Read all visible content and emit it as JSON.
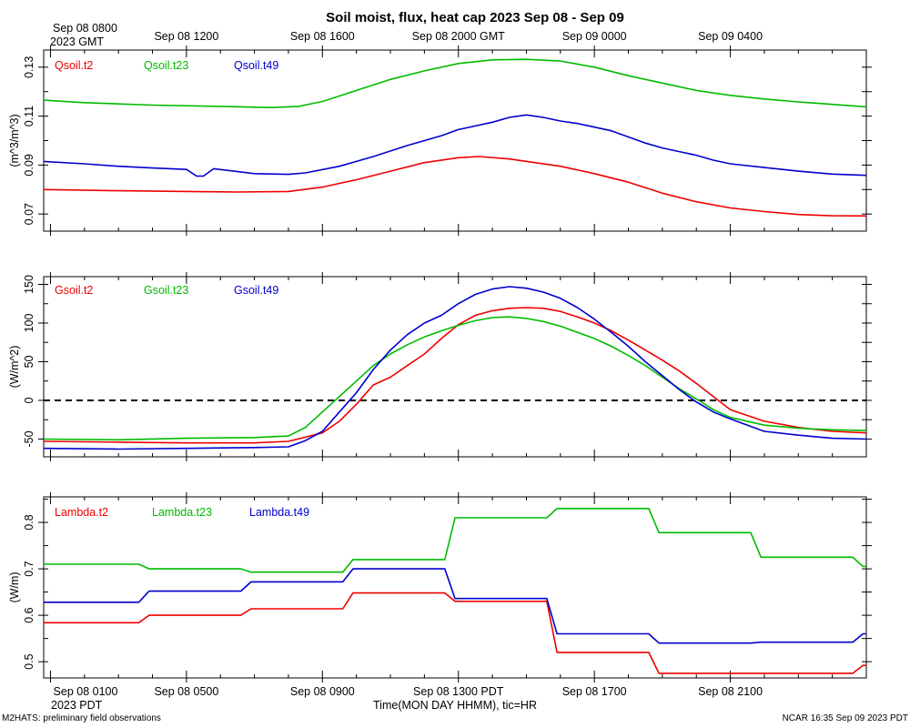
{
  "title": "Soil moist, flux, heat cap 2023 Sep 08 - Sep 09",
  "top_axis": {
    "first_label": "Sep 08 0800",
    "first_sublabel": "2023 GMT",
    "labels": [
      "Sep 08 1200",
      "Sep 08 1600",
      "Sep 08 2000 GMT",
      "Sep 09 0000",
      "Sep 09 0400"
    ]
  },
  "bottom_axis": {
    "labels": [
      "Sep 08 0100",
      "Sep 08 0500",
      "Sep 08 0900",
      "Sep 08 1300 PDT",
      "Sep 08 1700",
      "Sep 08 2100"
    ],
    "sublabel": "2023 PDT",
    "xlabel": "Time(MON DAY HHMM), tic=HR"
  },
  "footer": {
    "left": "M2HATS: preliminary field observations",
    "right": "NCAR 16:35 Sep 09 2023 PDT"
  },
  "colors": {
    "red": "#ee0000",
    "green": "#00bb00",
    "blue": "#0000cc"
  },
  "chart_data": [
    {
      "type": "line",
      "ylabel": "(m^3/m^3)",
      "ylim": [
        0.063,
        0.137
      ],
      "yticks": [
        "0.07",
        "0.09",
        "0.11",
        "0.13"
      ],
      "x_unit": "hours since Sep 08 0100 PDT",
      "xlim": [
        -0.2,
        24
      ],
      "grid": false,
      "legend": "top-left",
      "series": [
        {
          "name": "Qsoil.t2",
          "color": "red",
          "points": [
            [
              -0.2,
              0.08
            ],
            [
              2,
              0.0795
            ],
            [
              4,
              0.0792
            ],
            [
              5.5,
              0.079
            ],
            [
              7,
              0.0792
            ],
            [
              8,
              0.081
            ],
            [
              9,
              0.084
            ],
            [
              10,
              0.0875
            ],
            [
              11,
              0.091
            ],
            [
              12,
              0.093
            ],
            [
              12.6,
              0.0935
            ],
            [
              13.5,
              0.0925
            ],
            [
              15,
              0.0895
            ],
            [
              16,
              0.0865
            ],
            [
              17,
              0.083
            ],
            [
              18,
              0.0785
            ],
            [
              19,
              0.075
            ],
            [
              20,
              0.0725
            ],
            [
              21,
              0.071
            ],
            [
              22,
              0.0698
            ],
            [
              23,
              0.0693
            ],
            [
              24,
              0.0692
            ]
          ]
        },
        {
          "name": "Qsoil.t23",
          "color": "green",
          "points": [
            [
              -0.2,
              0.1165
            ],
            [
              1,
              0.1155
            ],
            [
              3,
              0.1145
            ],
            [
              5,
              0.114
            ],
            [
              6.5,
              0.1135
            ],
            [
              7.3,
              0.114
            ],
            [
              8,
              0.116
            ],
            [
              9,
              0.1205
            ],
            [
              10,
              0.125
            ],
            [
              11,
              0.1285
            ],
            [
              12,
              0.1315
            ],
            [
              13,
              0.133
            ],
            [
              14,
              0.1332
            ],
            [
              15,
              0.1325
            ],
            [
              16,
              0.13
            ],
            [
              17,
              0.1265
            ],
            [
              18,
              0.1235
            ],
            [
              19,
              0.1205
            ],
            [
              20,
              0.1185
            ],
            [
              21,
              0.117
            ],
            [
              22,
              0.1158
            ],
            [
              23,
              0.1148
            ],
            [
              24,
              0.1138
            ]
          ]
        },
        {
          "name": "Qsoil.t49",
          "color": "blue",
          "points": [
            [
              -0.2,
              0.0915
            ],
            [
              1,
              0.0905
            ],
            [
              2,
              0.0895
            ],
            [
              3,
              0.0888
            ],
            [
              4,
              0.0882
            ],
            [
              4.3,
              0.0855
            ],
            [
              4.5,
              0.0855
            ],
            [
              4.8,
              0.0885
            ],
            [
              6,
              0.0865
            ],
            [
              7,
              0.0862
            ],
            [
              7.5,
              0.0868
            ],
            [
              8.5,
              0.0895
            ],
            [
              9.5,
              0.0935
            ],
            [
              10.5,
              0.098
            ],
            [
              11.5,
              0.102
            ],
            [
              12,
              0.1045
            ],
            [
              12.5,
              0.106
            ],
            [
              13,
              0.1075
            ],
            [
              13.5,
              0.1095
            ],
            [
              14,
              0.1105
            ],
            [
              14.5,
              0.1095
            ],
            [
              15,
              0.108
            ],
            [
              15.5,
              0.107
            ],
            [
              16,
              0.1055
            ],
            [
              16.5,
              0.104
            ],
            [
              17,
              0.1015
            ],
            [
              17.5,
              0.099
            ],
            [
              18,
              0.097
            ],
            [
              18.5,
              0.0955
            ],
            [
              19,
              0.094
            ],
            [
              19.5,
              0.092
            ],
            [
              20,
              0.0905
            ],
            [
              21,
              0.089
            ],
            [
              22,
              0.0875
            ],
            [
              23,
              0.0863
            ],
            [
              24,
              0.0858
            ]
          ]
        }
      ]
    },
    {
      "type": "line",
      "ylabel": "(W/m^2)",
      "ylim": [
        -73,
        160
      ],
      "yticks": [
        "-50",
        "0",
        "50",
        "100",
        "150"
      ],
      "x_unit": "hours since Sep 08 0100 PDT",
      "xlim": [
        -0.2,
        24
      ],
      "zero_line": true,
      "grid": false,
      "legend": "top-left",
      "series": [
        {
          "name": "Gsoil.t2",
          "color": "red",
          "points": [
            [
              -0.2,
              -53
            ],
            [
              2,
              -54
            ],
            [
              4,
              -55
            ],
            [
              6,
              -55
            ],
            [
              7,
              -53
            ],
            [
              8,
              -42
            ],
            [
              8.5,
              -27
            ],
            [
              9,
              -5
            ],
            [
              9.5,
              20
            ],
            [
              10,
              30
            ],
            [
              10.5,
              45
            ],
            [
              11,
              60
            ],
            [
              11.5,
              80
            ],
            [
              12,
              98
            ],
            [
              12.5,
              110
            ],
            [
              13,
              116
            ],
            [
              13.5,
              119
            ],
            [
              14,
              120
            ],
            [
              14.5,
              119
            ],
            [
              15,
              115
            ],
            [
              15.5,
              108
            ],
            [
              16,
              100
            ],
            [
              16.5,
              90
            ],
            [
              17,
              78
            ],
            [
              17.5,
              65
            ],
            [
              18,
              52
            ],
            [
              18.5,
              38
            ],
            [
              19,
              22
            ],
            [
              19.5,
              5
            ],
            [
              20,
              -12
            ],
            [
              21,
              -27
            ],
            [
              22,
              -35
            ],
            [
              23,
              -40
            ],
            [
              24,
              -42
            ]
          ]
        },
        {
          "name": "Gsoil.t23",
          "color": "green",
          "points": [
            [
              -0.2,
              -50
            ],
            [
              2,
              -51
            ],
            [
              4,
              -49
            ],
            [
              6,
              -48
            ],
            [
              7,
              -46
            ],
            [
              7.5,
              -35
            ],
            [
              8,
              -15
            ],
            [
              8.5,
              5
            ],
            [
              9,
              25
            ],
            [
              9.5,
              45
            ],
            [
              10,
              60
            ],
            [
              10.5,
              72
            ],
            [
              11,
              82
            ],
            [
              11.5,
              90
            ],
            [
              12,
              97
            ],
            [
              12.5,
              103
            ],
            [
              13,
              107
            ],
            [
              13.5,
              108
            ],
            [
              14,
              106
            ],
            [
              14.5,
              102
            ],
            [
              15,
              96
            ],
            [
              15.5,
              88
            ],
            [
              16,
              80
            ],
            [
              16.5,
              70
            ],
            [
              17,
              58
            ],
            [
              17.5,
              45
            ],
            [
              18,
              30
            ],
            [
              18.5,
              15
            ],
            [
              19,
              2
            ],
            [
              19.5,
              -12
            ],
            [
              20,
              -22
            ],
            [
              21,
              -32
            ],
            [
              22,
              -36
            ],
            [
              23,
              -38
            ],
            [
              24,
              -39
            ]
          ]
        },
        {
          "name": "Gsoil.t49",
          "color": "blue",
          "points": [
            [
              -0.2,
              -62
            ],
            [
              2,
              -63
            ],
            [
              4,
              -62
            ],
            [
              6,
              -61
            ],
            [
              7,
              -60
            ],
            [
              7.5,
              -52
            ],
            [
              8,
              -40
            ],
            [
              8.5,
              -15
            ],
            [
              9,
              10
            ],
            [
              9.5,
              40
            ],
            [
              10,
              65
            ],
            [
              10.5,
              85
            ],
            [
              11,
              100
            ],
            [
              11.5,
              110
            ],
            [
              12,
              125
            ],
            [
              12.5,
              137
            ],
            [
              13,
              144
            ],
            [
              13.5,
              147
            ],
            [
              14,
              145
            ],
            [
              14.5,
              140
            ],
            [
              15,
              132
            ],
            [
              15.5,
              120
            ],
            [
              16,
              105
            ],
            [
              16.5,
              88
            ],
            [
              17,
              70
            ],
            [
              17.5,
              50
            ],
            [
              18,
              32
            ],
            [
              18.5,
              14
            ],
            [
              19,
              -2
            ],
            [
              19.5,
              -15
            ],
            [
              20,
              -24
            ],
            [
              21,
              -40
            ],
            [
              22,
              -45
            ],
            [
              23,
              -49
            ],
            [
              24,
              -50
            ]
          ]
        }
      ]
    },
    {
      "type": "line",
      "ylabel": "(W/m)",
      "ylim": [
        0.465,
        0.855
      ],
      "yticks": [
        "0.5",
        "0.6",
        "0.7",
        "0.8"
      ],
      "x_unit": "hours since Sep 08 0100 PDT",
      "xlim": [
        -0.2,
        24
      ],
      "grid": false,
      "legend": "top-left",
      "series": [
        {
          "name": "Lambda.t2",
          "color": "red",
          "points": [
            [
              -0.2,
              0.584
            ],
            [
              2.6,
              0.584
            ],
            [
              2.9,
              0.6
            ],
            [
              5.6,
              0.6
            ],
            [
              5.9,
              0.614
            ],
            [
              8.6,
              0.614
            ],
            [
              8.9,
              0.648
            ],
            [
              11.6,
              0.648
            ],
            [
              11.9,
              0.63
            ],
            [
              14.6,
              0.63
            ],
            [
              14.9,
              0.52
            ],
            [
              17.6,
              0.52
            ],
            [
              17.9,
              0.475
            ],
            [
              23.6,
              0.475
            ],
            [
              23.9,
              0.492
            ],
            [
              24,
              0.492
            ]
          ]
        },
        {
          "name": "Lambda.t23",
          "color": "green",
          "points": [
            [
              -0.2,
              0.71
            ],
            [
              2.6,
              0.71
            ],
            [
              2.9,
              0.7
            ],
            [
              5.6,
              0.7
            ],
            [
              5.9,
              0.693
            ],
            [
              8.6,
              0.693
            ],
            [
              8.9,
              0.72
            ],
            [
              11.6,
              0.72
            ],
            [
              11.9,
              0.81
            ],
            [
              14.6,
              0.81
            ],
            [
              14.9,
              0.83
            ],
            [
              17.6,
              0.83
            ],
            [
              17.9,
              0.778
            ],
            [
              20.6,
              0.778
            ],
            [
              20.9,
              0.725
            ],
            [
              23.6,
              0.725
            ],
            [
              23.9,
              0.705
            ],
            [
              24,
              0.705
            ]
          ]
        },
        {
          "name": "Lambda.t49",
          "color": "blue",
          "points": [
            [
              -0.2,
              0.628
            ],
            [
              2.6,
              0.628
            ],
            [
              2.9,
              0.652
            ],
            [
              5.6,
              0.652
            ],
            [
              5.9,
              0.672
            ],
            [
              8.6,
              0.672
            ],
            [
              8.9,
              0.7
            ],
            [
              11.6,
              0.7
            ],
            [
              11.9,
              0.636
            ],
            [
              14.6,
              0.636
            ],
            [
              14.9,
              0.56
            ],
            [
              17.6,
              0.56
            ],
            [
              17.9,
              0.54
            ],
            [
              20.6,
              0.54
            ],
            [
              20.9,
              0.542
            ],
            [
              23.6,
              0.542
            ],
            [
              23.9,
              0.56
            ],
            [
              24,
              0.56
            ]
          ]
        }
      ]
    }
  ]
}
